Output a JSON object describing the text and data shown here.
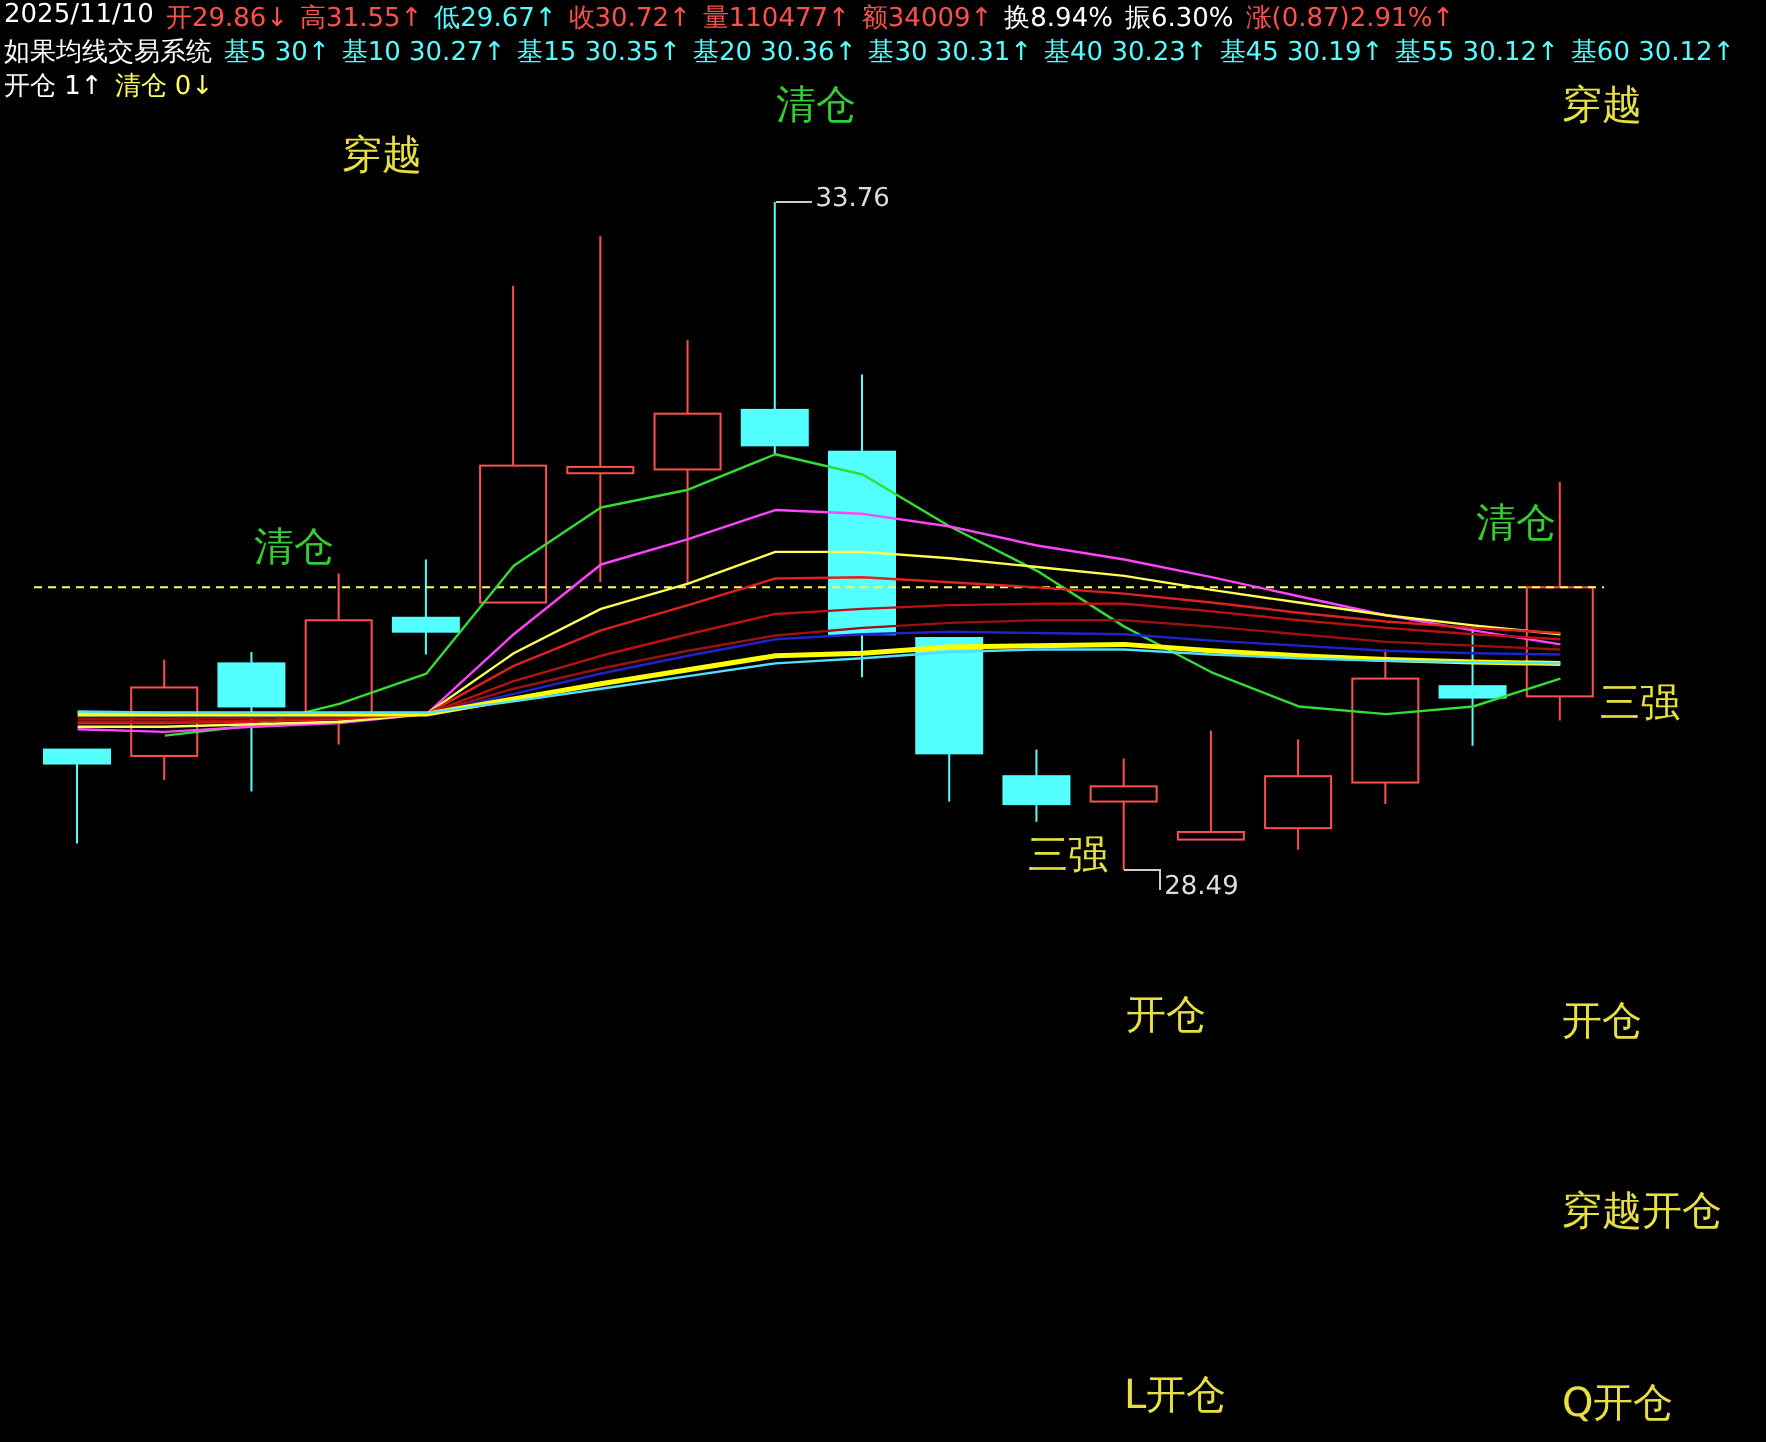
{
  "chart_data": {
    "type": "candlestick",
    "categories": [
      null,
      null,
      null,
      null,
      null,
      null,
      null,
      null,
      null,
      null,
      null,
      null,
      null,
      null,
      null,
      null,
      null,
      null
    ],
    "ohlc": [
      [
        29.44,
        29.44,
        28.7,
        29.33
      ],
      [
        29.39,
        30.15,
        29.2,
        29.93
      ],
      [
        30.12,
        30.21,
        29.11,
        29.78
      ],
      [
        29.72,
        30.83,
        29.48,
        30.46
      ],
      [
        30.48,
        30.94,
        30.19,
        30.37
      ],
      [
        30.6,
        33.1,
        30.6,
        31.68
      ],
      [
        31.62,
        33.49,
        30.76,
        31.67
      ],
      [
        31.65,
        32.67,
        30.75,
        32.09
      ],
      [
        32.12,
        33.76,
        31.77,
        31.84
      ],
      [
        31.79,
        32.4,
        30.01,
        30.35
      ],
      [
        30.32,
        30.32,
        29.03,
        29.41
      ],
      [
        29.23,
        29.44,
        28.87,
        29.01
      ],
      [
        29.03,
        29.37,
        28.49,
        29.15
      ],
      [
        28.73,
        29.59,
        28.73,
        28.79
      ],
      [
        28.82,
        29.52,
        28.65,
        29.23
      ],
      [
        29.18,
        30.23,
        29.01,
        30.0
      ],
      [
        29.94,
        30.41,
        29.47,
        29.85
      ],
      [
        29.86,
        31.55,
        29.67,
        30.72
      ]
    ],
    "colors": [
      "#54ffff",
      "#ff5050",
      "#54ffff",
      "#ff5050",
      "#54ffff",
      "#ff5050",
      "#ff5050",
      "#ff5050",
      "#54ffff",
      "#54ffff",
      "#54ffff",
      "#54ffff",
      "#ff5050",
      "#ff5050",
      "#ff5050",
      "#ff5050",
      "#54ffff",
      "#ff5050"
    ],
    "series": [
      {
        "type": "line",
        "color": "#33dd33",
        "values": [
          null,
          29.55,
          29.63,
          29.8,
          30.04,
          30.89,
          31.35,
          31.49,
          31.77,
          31.61,
          31.2,
          30.85,
          30.41,
          30.05,
          29.78,
          29.72,
          29.78,
          30.0
        ]
      },
      {
        "type": "line",
        "color": "#ff44ff",
        "values": [
          29.6,
          29.58,
          29.62,
          29.65,
          29.72,
          30.35,
          30.9,
          31.1,
          31.33,
          31.3,
          31.2,
          31.05,
          30.94,
          30.8,
          30.65,
          30.5,
          30.38,
          30.27
        ]
      },
      {
        "type": "line",
        "color": "#ffff55",
        "values": [
          29.62,
          29.62,
          29.64,
          29.66,
          29.72,
          30.2,
          30.55,
          30.75,
          31.0,
          31.0,
          30.95,
          30.88,
          30.81,
          30.7,
          30.6,
          30.5,
          30.42,
          30.35
        ]
      },
      {
        "type": "line",
        "color": "#dd2222",
        "values": [
          29.65,
          29.65,
          29.66,
          29.68,
          29.72,
          30.1,
          30.38,
          30.58,
          30.79,
          30.8,
          30.76,
          30.72,
          30.67,
          30.6,
          30.52,
          30.45,
          30.4,
          30.36
        ]
      },
      {
        "type": "line",
        "color": "#bb1111",
        "values": [
          29.66,
          29.66,
          29.67,
          29.69,
          29.72,
          29.98,
          30.18,
          30.35,
          30.51,
          30.55,
          30.58,
          30.59,
          30.59,
          30.53,
          30.46,
          30.4,
          30.35,
          30.31
        ]
      },
      {
        "type": "line",
        "color": "#991111",
        "values": [
          29.68,
          29.68,
          29.69,
          29.7,
          29.72,
          29.92,
          30.08,
          30.22,
          30.34,
          30.4,
          30.44,
          30.46,
          30.46,
          30.41,
          30.35,
          30.29,
          30.26,
          30.23
        ]
      },
      {
        "type": "line",
        "color": "#2222cc",
        "values": [
          29.7,
          29.7,
          29.7,
          29.71,
          29.72,
          29.88,
          30.04,
          30.18,
          30.31,
          30.35,
          30.37,
          30.36,
          30.35,
          30.3,
          30.26,
          30.22,
          30.2,
          30.19
        ]
      },
      {
        "type": "line",
        "color": "#ffff00",
        "values": [
          29.72,
          29.72,
          29.72,
          29.72,
          29.72,
          29.84,
          29.96,
          30.07,
          30.18,
          30.2,
          30.25,
          30.26,
          30.27,
          30.22,
          30.18,
          30.15,
          30.13,
          30.12
        ]
      },
      {
        "type": "line",
        "color": "#55ddff",
        "values": [
          29.74,
          29.73,
          29.73,
          29.73,
          29.73,
          29.82,
          29.92,
          30.02,
          30.12,
          30.16,
          30.21,
          30.23,
          30.23,
          30.19,
          30.16,
          30.14,
          30.13,
          30.12
        ]
      }
    ],
    "ref_lines": [
      {
        "axis": "y",
        "value": 30.72,
        "color": "#ffff55",
        "line_style": "dashed"
      }
    ],
    "annotations": [
      "2025/11/10",
      "开29.86↓",
      "高31.55↑",
      "低29.67↑",
      "收30.72↑",
      "量110477↑",
      "额34009↑",
      "换8.94%",
      "振6.30%",
      "涨(0.87)2.91%↑",
      "如果均线交易系统",
      "基5 30↑",
      "基10 30.27↑",
      "基15 30.35↑",
      "基20 30.36↑",
      "基30 30.31↑",
      "基40 30.23↑",
      "基45 30.19↑",
      "基55 30.12↑",
      "基60 30.12↑",
      "开仓 1↑",
      "清仓 0↓",
      "穿越",
      "清仓",
      "穿越",
      "清仓",
      "清仓",
      "三强",
      "三强",
      "开仓",
      "开仓",
      "穿越开仓",
      "L开仓",
      "Q开仓",
      "33.76",
      "28.49"
    ]
  }
}
